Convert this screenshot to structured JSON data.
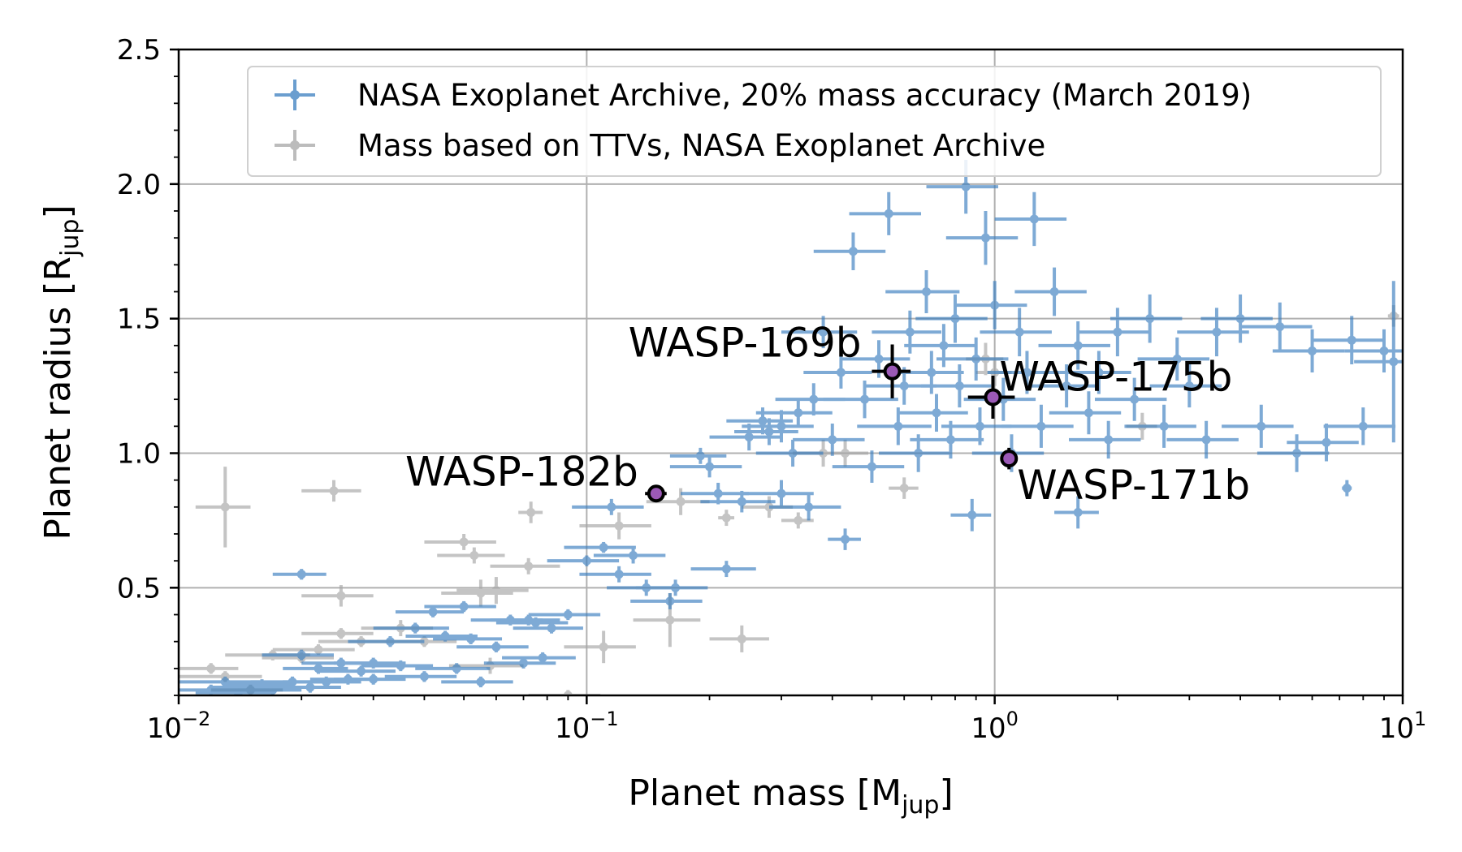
{
  "chart_data": {
    "type": "scatter",
    "xlabel": "Planet mass [M",
    "xlabel_sub": "jup",
    "xlabel_end": "]",
    "ylabel": "Planet radius [R",
    "ylabel_sub": "jup",
    "ylabel_end": "]",
    "xscale": "log",
    "xlim": [
      0.01,
      10
    ],
    "ylim": [
      0.1,
      2.5
    ],
    "grid": true,
    "legend_position": "top-right",
    "x_ticks": [
      {
        "value": 0.01,
        "base": "10",
        "exp": "−2"
      },
      {
        "value": 0.1,
        "base": "10",
        "exp": "−1"
      },
      {
        "value": 1,
        "base": "10",
        "exp": "0"
      },
      {
        "value": 10,
        "base": "10",
        "exp": "1"
      }
    ],
    "y_ticks": [
      {
        "value": 0.5,
        "label": "0.5"
      },
      {
        "value": 1.0,
        "label": "1.0"
      },
      {
        "value": 1.5,
        "label": "1.5"
      },
      {
        "value": 2.0,
        "label": "2.0"
      },
      {
        "value": 2.5,
        "label": "2.5"
      }
    ],
    "series": [
      {
        "name": "NASA Exoplanet Archive, 20% mass accuracy (March 2019)",
        "color": "#3a7ebf",
        "points": [
          [
            0.012,
            0.12,
            0.002,
            0.02
          ],
          [
            0.013,
            0.15,
            0.003,
            0.02
          ],
          [
            0.014,
            0.11,
            0.003,
            0.02
          ],
          [
            0.015,
            0.13,
            0.003,
            0.02
          ],
          [
            0.016,
            0.14,
            0.003,
            0.02
          ],
          [
            0.017,
            0.12,
            0.003,
            0.02
          ],
          [
            0.019,
            0.15,
            0.004,
            0.02
          ],
          [
            0.02,
            0.55,
            0.003,
            0.02
          ],
          [
            0.02,
            0.25,
            0.004,
            0.02
          ],
          [
            0.021,
            0.13,
            0.004,
            0.02
          ],
          [
            0.022,
            0.2,
            0.004,
            0.02
          ],
          [
            0.023,
            0.15,
            0.005,
            0.02
          ],
          [
            0.025,
            0.22,
            0.005,
            0.02
          ],
          [
            0.026,
            0.16,
            0.005,
            0.02
          ],
          [
            0.028,
            0.19,
            0.006,
            0.02
          ],
          [
            0.03,
            0.22,
            0.006,
            0.02
          ],
          [
            0.03,
            0.16,
            0.006,
            0.02
          ],
          [
            0.033,
            0.3,
            0.007,
            0.02
          ],
          [
            0.035,
            0.21,
            0.007,
            0.02
          ],
          [
            0.038,
            0.35,
            0.008,
            0.02
          ],
          [
            0.04,
            0.17,
            0.008,
            0.02
          ],
          [
            0.042,
            0.41,
            0.008,
            0.02
          ],
          [
            0.045,
            0.32,
            0.009,
            0.02
          ],
          [
            0.048,
            0.2,
            0.01,
            0.02
          ],
          [
            0.05,
            0.43,
            0.01,
            0.02
          ],
          [
            0.052,
            0.31,
            0.01,
            0.02
          ],
          [
            0.055,
            0.15,
            0.011,
            0.02
          ],
          [
            0.06,
            0.28,
            0.012,
            0.02
          ],
          [
            0.065,
            0.38,
            0.013,
            0.02
          ],
          [
            0.07,
            0.22,
            0.014,
            0.02
          ],
          [
            0.072,
            0.38,
            0.014,
            0.02
          ],
          [
            0.075,
            0.37,
            0.015,
            0.02
          ],
          [
            0.078,
            0.24,
            0.016,
            0.02
          ],
          [
            0.082,
            0.35,
            0.016,
            0.02
          ],
          [
            0.09,
            0.4,
            0.018,
            0.02
          ],
          [
            0.1,
            0.6,
            0.02,
            0.02
          ],
          [
            0.11,
            0.65,
            0.022,
            0.02
          ],
          [
            0.115,
            0.8,
            0.023,
            0.03
          ],
          [
            0.12,
            0.55,
            0.024,
            0.03
          ],
          [
            0.13,
            0.62,
            0.026,
            0.03
          ],
          [
            0.14,
            0.5,
            0.028,
            0.03
          ],
          [
            0.16,
            0.45,
            0.032,
            0.03
          ],
          [
            0.165,
            0.5,
            0.033,
            0.03
          ],
          [
            0.19,
            0.99,
            0.03,
            0.03
          ],
          [
            0.2,
            0.95,
            0.04,
            0.04
          ],
          [
            0.21,
            0.85,
            0.04,
            0.04
          ],
          [
            0.22,
            0.57,
            0.04,
            0.03
          ],
          [
            0.24,
            0.82,
            0.05,
            0.04
          ],
          [
            0.25,
            1.06,
            0.05,
            0.05
          ],
          [
            0.27,
            1.12,
            0.05,
            0.05
          ],
          [
            0.28,
            1.08,
            0.05,
            0.05
          ],
          [
            0.3,
            1.1,
            0.06,
            0.06
          ],
          [
            0.3,
            0.85,
            0.06,
            0.05
          ],
          [
            0.32,
            1.0,
            0.06,
            0.05
          ],
          [
            0.33,
            1.15,
            0.07,
            0.05
          ],
          [
            0.35,
            0.8,
            0.07,
            0.05
          ],
          [
            0.36,
            1.2,
            0.07,
            0.06
          ],
          [
            0.38,
            1.45,
            0.08,
            0.06
          ],
          [
            0.4,
            1.05,
            0.08,
            0.06
          ],
          [
            0.42,
            1.3,
            0.08,
            0.06
          ],
          [
            0.43,
            0.68,
            0.04,
            0.04
          ],
          [
            0.45,
            1.75,
            0.09,
            0.07
          ],
          [
            0.48,
            1.2,
            0.1,
            0.07
          ],
          [
            0.5,
            0.95,
            0.1,
            0.06
          ],
          [
            0.52,
            1.35,
            0.1,
            0.07
          ],
          [
            0.55,
            1.89,
            0.11,
            0.08
          ],
          [
            0.58,
            1.1,
            0.12,
            0.07
          ],
          [
            0.6,
            1.25,
            0.12,
            0.07
          ],
          [
            0.62,
            1.45,
            0.12,
            0.08
          ],
          [
            0.65,
            1.0,
            0.13,
            0.07
          ],
          [
            0.68,
            1.6,
            0.14,
            0.08
          ],
          [
            0.7,
            1.3,
            0.14,
            0.08
          ],
          [
            0.72,
            1.15,
            0.14,
            0.07
          ],
          [
            0.75,
            1.4,
            0.15,
            0.08
          ],
          [
            0.78,
            1.05,
            0.16,
            0.07
          ],
          [
            0.8,
            1.5,
            0.16,
            0.09
          ],
          [
            0.82,
            1.25,
            0.16,
            0.08
          ],
          [
            0.85,
            1.99,
            0.17,
            0.1
          ],
          [
            0.88,
            0.77,
            0.1,
            0.06
          ],
          [
            0.9,
            1.35,
            0.18,
            0.08
          ],
          [
            0.92,
            1.1,
            0.18,
            0.07
          ],
          [
            0.95,
            1.8,
            0.19,
            0.1
          ],
          [
            1.0,
            1.55,
            0.2,
            0.09
          ],
          [
            1.05,
            1.2,
            0.21,
            0.08
          ],
          [
            1.1,
            1.0,
            0.22,
            0.07
          ],
          [
            1.15,
            1.45,
            0.23,
            0.09
          ],
          [
            1.2,
            1.3,
            0.24,
            0.08
          ],
          [
            1.25,
            1.87,
            0.25,
            0.1
          ],
          [
            1.3,
            1.1,
            0.26,
            0.08
          ],
          [
            1.4,
            1.6,
            0.28,
            0.09
          ],
          [
            1.5,
            1.25,
            0.3,
            0.08
          ],
          [
            1.6,
            1.4,
            0.32,
            0.09
          ],
          [
            1.6,
            0.78,
            0.2,
            0.06
          ],
          [
            1.7,
            1.15,
            0.34,
            0.08
          ],
          [
            1.8,
            1.3,
            0.36,
            0.08
          ],
          [
            1.9,
            1.05,
            0.38,
            0.07
          ],
          [
            2.0,
            1.45,
            0.4,
            0.09
          ],
          [
            2.2,
            1.2,
            0.44,
            0.08
          ],
          [
            2.4,
            1.5,
            0.48,
            0.09
          ],
          [
            2.6,
            1.1,
            0.52,
            0.08
          ],
          [
            2.8,
            1.35,
            0.56,
            0.08
          ],
          [
            3.0,
            1.25,
            0.6,
            0.08
          ],
          [
            3.3,
            1.05,
            0.66,
            0.07
          ],
          [
            3.5,
            1.45,
            0.7,
            0.09
          ],
          [
            4.0,
            1.5,
            0.8,
            0.09
          ],
          [
            4.5,
            1.1,
            0.9,
            0.08
          ],
          [
            5.0,
            1.47,
            1.0,
            0.09
          ],
          [
            5.5,
            1.0,
            1.1,
            0.07
          ],
          [
            6.0,
            1.38,
            1.2,
            0.08
          ],
          [
            6.5,
            1.04,
            1.3,
            0.07
          ],
          [
            7.3,
            0.87,
            0.2,
            0.03
          ],
          [
            7.5,
            1.42,
            1.5,
            0.09
          ],
          [
            8.0,
            1.1,
            1.6,
            0.07
          ],
          [
            9.0,
            1.38,
            1.8,
            0.08
          ],
          [
            9.5,
            1.34,
            1.9,
            0.3
          ]
        ]
      },
      {
        "name": "Mass based on TTVs, NASA Exoplanet Archive",
        "color": "#a6a6a6",
        "points": [
          [
            0.012,
            0.2,
            0.002,
            0.02
          ],
          [
            0.013,
            0.8,
            0.002,
            0.15
          ],
          [
            0.013,
            0.17,
            0.003,
            0.02
          ],
          [
            0.015,
            0.12,
            0.003,
            0.02
          ],
          [
            0.017,
            0.25,
            0.004,
            0.02
          ],
          [
            0.02,
            0.24,
            0.004,
            0.02
          ],
          [
            0.022,
            0.27,
            0.005,
            0.02
          ],
          [
            0.024,
            0.86,
            0.004,
            0.04
          ],
          [
            0.025,
            0.47,
            0.005,
            0.04
          ],
          [
            0.025,
            0.33,
            0.005,
            0.02
          ],
          [
            0.028,
            0.3,
            0.006,
            0.02
          ],
          [
            0.035,
            0.35,
            0.007,
            0.03
          ],
          [
            0.04,
            0.3,
            0.008,
            0.02
          ],
          [
            0.05,
            0.67,
            0.01,
            0.03
          ],
          [
            0.053,
            0.62,
            0.01,
            0.03
          ],
          [
            0.055,
            0.48,
            0.011,
            0.05
          ],
          [
            0.058,
            0.21,
            0.012,
            0.03
          ],
          [
            0.06,
            0.49,
            0.012,
            0.05
          ],
          [
            0.072,
            0.58,
            0.014,
            0.03
          ],
          [
            0.073,
            0.78,
            0.005,
            0.04
          ],
          [
            0.09,
            0.1,
            0.018,
            0.02
          ],
          [
            0.11,
            0.28,
            0.022,
            0.06
          ],
          [
            0.12,
            0.73,
            0.024,
            0.05
          ],
          [
            0.16,
            0.38,
            0.03,
            0.1
          ],
          [
            0.17,
            0.82,
            0.03,
            0.05
          ],
          [
            0.22,
            0.76,
            0.01,
            0.03
          ],
          [
            0.24,
            0.31,
            0.04,
            0.05
          ],
          [
            0.28,
            0.8,
            0.04,
            0.04
          ],
          [
            0.33,
            0.75,
            0.03,
            0.03
          ],
          [
            0.38,
            1.0,
            0.06,
            0.05
          ],
          [
            0.43,
            1.0,
            0.06,
            0.05
          ],
          [
            0.6,
            0.87,
            0.05,
            0.04
          ],
          [
            0.95,
            1.35,
            0.1,
            0.06
          ],
          [
            1.0,
            1.3,
            0.1,
            0.05
          ],
          [
            2.3,
            1.1,
            0.2,
            0.05
          ],
          [
            9.5,
            1.51,
            0.3,
            0.04
          ]
        ]
      }
    ],
    "highlighted": [
      {
        "name": "WASP-169b",
        "x": 0.561,
        "y": 1.304,
        "xerr": 0.061,
        "yerr": 0.1
      },
      {
        "name": "WASP-175b",
        "x": 0.99,
        "y": 1.208,
        "xerr": 0.13,
        "yerr": 0.08
      },
      {
        "name": "WASP-171b",
        "x": 1.084,
        "y": 0.98,
        "xerr": 0.03,
        "yerr": 0.04
      },
      {
        "name": "WASP-182b",
        "x": 0.148,
        "y": 0.85,
        "xerr": 0.009,
        "yerr": 0.03
      }
    ]
  }
}
